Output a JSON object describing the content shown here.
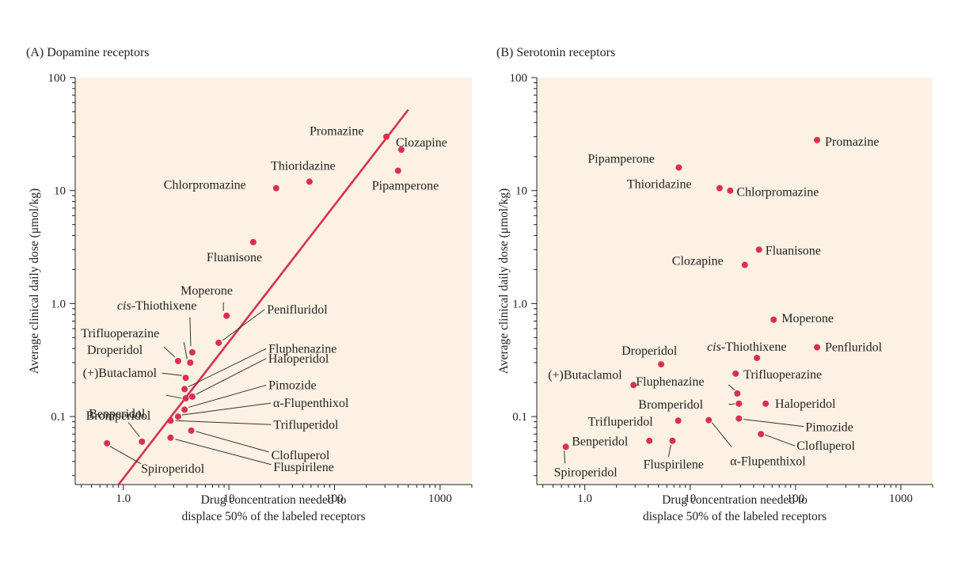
{
  "chart_data": [
    {
      "type": "scatter",
      "title": "(A)  Dopamine receptors",
      "xlabel_lines": [
        "Drug concentration needed to",
        "displace 50% of the labeled receptors"
      ],
      "ylabel": "Average clinical daily dose (μmol/kg)",
      "x_scale": "log",
      "y_scale": "log",
      "xlim": [
        0.35,
        2000
      ],
      "ylim": [
        0.025,
        100
      ],
      "xticks": [
        1,
        10,
        100,
        1000
      ],
      "xtick_labels": [
        "1.0",
        "10",
        "100",
        "1000"
      ],
      "yticks": [
        0.1,
        1,
        10,
        100
      ],
      "ytick_labels": [
        "0.1",
        "1.0",
        "10",
        "100"
      ],
      "regression_line": {
        "x": [
          0.9,
          500
        ],
        "y": [
          0.025,
          52
        ]
      },
      "points": [
        {
          "label": "Promazine",
          "x": 310,
          "y": 30
        },
        {
          "label": "Clozapine",
          "x": 430,
          "y": 23
        },
        {
          "label": "Thioridazine",
          "x": 58,
          "y": 12
        },
        {
          "label": "Pipamperone",
          "x": 400,
          "y": 15
        },
        {
          "label": "Chlorpromazine",
          "x": 28,
          "y": 10.5
        },
        {
          "label": "Fluanisone",
          "x": 17,
          "y": 3.5
        },
        {
          "label": "Moperone",
          "x": 9.5,
          "y": 0.78
        },
        {
          "label": "cis-Thiothixene",
          "x": 4.5,
          "y": 0.37
        },
        {
          "label": "Trifluoperazine",
          "x": 4.3,
          "y": 0.3
        },
        {
          "label": "Droperidol",
          "x": 3.3,
          "y": 0.31
        },
        {
          "label": "Penifluridol",
          "x": 8,
          "y": 0.45
        },
        {
          "label": "(+)Butaclamol",
          "x": 3.9,
          "y": 0.22
        },
        {
          "label": "Fluphenazine",
          "x": 3.8,
          "y": 0.175
        },
        {
          "label": "Bromperidol",
          "x": 3.9,
          "y": 0.145
        },
        {
          "label": "Haloperidol",
          "x": 4.5,
          "y": 0.15
        },
        {
          "label": "Pimozide",
          "x": 3.8,
          "y": 0.115
        },
        {
          "label": "α-Flupenthixol",
          "x": 3.3,
          "y": 0.1
        },
        {
          "label": "Trifluperidol",
          "x": 2.8,
          "y": 0.092
        },
        {
          "label": "Benperidol",
          "x": 1.5,
          "y": 0.06
        },
        {
          "label": "Clofluperol",
          "x": 4.4,
          "y": 0.075
        },
        {
          "label": "Fluspirilene",
          "x": 2.8,
          "y": 0.065
        },
        {
          "label": "Spiroperidol",
          "x": 0.7,
          "y": 0.058
        }
      ]
    },
    {
      "type": "scatter",
      "title": "(B)  Serotonin receptors",
      "xlabel_lines": [
        "Drug concentration needed to",
        "displace 50% of the labeled receptors"
      ],
      "ylabel": "Average clinical daily dose (μmol/kg)",
      "x_scale": "log",
      "y_scale": "log",
      "xlim": [
        0.35,
        2000
      ],
      "ylim": [
        0.025,
        100
      ],
      "xticks": [
        1,
        10,
        100,
        1000
      ],
      "xtick_labels": [
        "1.0",
        "10",
        "100",
        "1000"
      ],
      "yticks": [
        0.1,
        1,
        10,
        100
      ],
      "ytick_labels": [
        "0.1",
        "1.0",
        "10",
        "100"
      ],
      "points": [
        {
          "label": "Promazine",
          "x": 160,
          "y": 28
        },
        {
          "label": "Pipamperone",
          "x": 7.8,
          "y": 16
        },
        {
          "label": "Thioridazine",
          "x": 19,
          "y": 10.5
        },
        {
          "label": "Chlorpromazine",
          "x": 24,
          "y": 10
        },
        {
          "label": "Fluanisone",
          "x": 45,
          "y": 3
        },
        {
          "label": "Clozapine",
          "x": 33,
          "y": 2.2
        },
        {
          "label": "Moperone",
          "x": 62,
          "y": 0.72
        },
        {
          "label": "cis-Thiothixene",
          "x": 43,
          "y": 0.33
        },
        {
          "label": "Penfluridol",
          "x": 160,
          "y": 0.41
        },
        {
          "label": "Droperidol",
          "x": 5.3,
          "y": 0.29
        },
        {
          "label": "Trifluoperazine",
          "x": 27,
          "y": 0.24
        },
        {
          "label": "(+)Butaclamol",
          "x": 2.9,
          "y": 0.19
        },
        {
          "label": "Fluphenazine",
          "x": 28,
          "y": 0.16
        },
        {
          "label": "Bromperidol",
          "x": 29,
          "y": 0.13
        },
        {
          "label": "Haloperidol",
          "x": 52,
          "y": 0.13
        },
        {
          "label": "Trifluperidol",
          "x": 7.7,
          "y": 0.092
        },
        {
          "label": "α-Flupenthixol",
          "x": 15,
          "y": 0.093
        },
        {
          "label": "Pimozide",
          "x": 29,
          "y": 0.096
        },
        {
          "label": "Clofluperol",
          "x": 47,
          "y": 0.07
        },
        {
          "label": "Benperidol",
          "x": 4.1,
          "y": 0.061
        },
        {
          "label": "Fluspirilene",
          "x": 6.8,
          "y": 0.061
        },
        {
          "label": "Spiroperidol",
          "x": 0.66,
          "y": 0.054
        }
      ]
    }
  ]
}
